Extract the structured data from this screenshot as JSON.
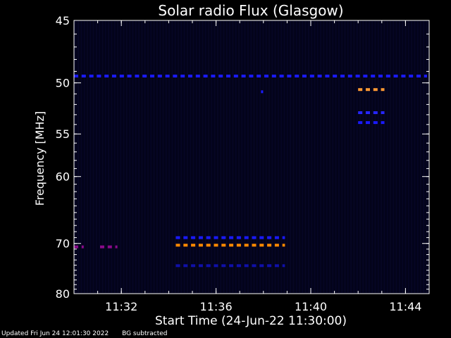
{
  "chart_data": {
    "type": "heatmap",
    "title": "Solar radio Flux (Glasgow)",
    "xlabel": "Start Time (24-Jun-22 11:30:00)",
    "ylabel": "Frequency [MHz]",
    "x_unit": "minutes after 11:30:00",
    "xlim": [
      0,
      15.0
    ],
    "ylim": [
      80,
      45
    ],
    "y_scale": "reciprocal",
    "xticks": [
      {
        "value": 2,
        "label": "11:32"
      },
      {
        "value": 6,
        "label": "11:36"
      },
      {
        "value": 10,
        "label": "11:40"
      },
      {
        "value": 14,
        "label": "11:44"
      }
    ],
    "yticks": [
      {
        "value": 45,
        "label": "45"
      },
      {
        "value": 50,
        "label": "50"
      },
      {
        "value": 55,
        "label": "55"
      },
      {
        "value": 60,
        "label": "60"
      },
      {
        "value": 70,
        "label": "70"
      },
      {
        "value": 80,
        "label": "80"
      }
    ],
    "background_color": "#03031a",
    "series": [
      {
        "freq_mhz": 49.4,
        "t_start": 0.0,
        "t_end": 15.0,
        "color": "#1a1aff"
      },
      {
        "freq_mhz": 50.6,
        "t_start": 12.0,
        "t_end": 13.2,
        "color": "#ff9933"
      },
      {
        "freq_mhz": 52.8,
        "t_start": 12.0,
        "t_end": 13.2,
        "color": "#2626ff"
      },
      {
        "freq_mhz": 53.8,
        "t_start": 12.0,
        "t_end": 13.2,
        "color": "#1a1aff"
      },
      {
        "freq_mhz": 50.8,
        "t_start": 7.9,
        "t_end": 8.0,
        "color": "#1a1aff"
      },
      {
        "freq_mhz": 69.0,
        "t_start": 4.3,
        "t_end": 9.0,
        "color": "#1a1aff"
      },
      {
        "freq_mhz": 70.3,
        "t_start": 4.3,
        "t_end": 9.0,
        "color": "#ff8800"
      },
      {
        "freq_mhz": 74.1,
        "t_start": 4.3,
        "t_end": 9.0,
        "color": "#1010aa"
      },
      {
        "freq_mhz": 70.6,
        "t_start": 0.0,
        "t_end": 0.5,
        "color": "#8a0a8a"
      },
      {
        "freq_mhz": 70.6,
        "t_start": 1.1,
        "t_end": 1.8,
        "color": "#8a0a8a"
      }
    ]
  },
  "footer": {
    "updated": "Updated Fri Jun 24 12:01:30 2022",
    "bg_note": "BG subtracted"
  }
}
